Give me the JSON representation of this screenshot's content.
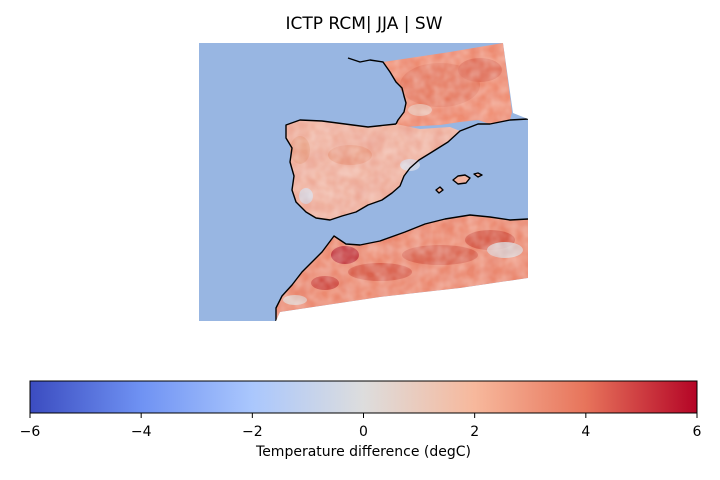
{
  "title": "ICTP RCM| JJA | SW",
  "colorbar": {
    "label": "Temperature difference (degC)",
    "min": -6,
    "max": 6,
    "ticks": [
      -6,
      -4,
      -2,
      0,
      2,
      4,
      6
    ],
    "tick_labels": [
      "−6",
      "−4",
      "−2",
      "0",
      "2",
      "4",
      "6"
    ],
    "colormap": "coolwarm",
    "colors": [
      "#3b4cc0",
      "#6f92f3",
      "#aac7fd",
      "#dddddd",
      "#f7b89c",
      "#e7745b",
      "#b40426"
    ]
  },
  "map": {
    "ocean_color": "#98b6e2",
    "coastline_color": "#000000"
  }
}
